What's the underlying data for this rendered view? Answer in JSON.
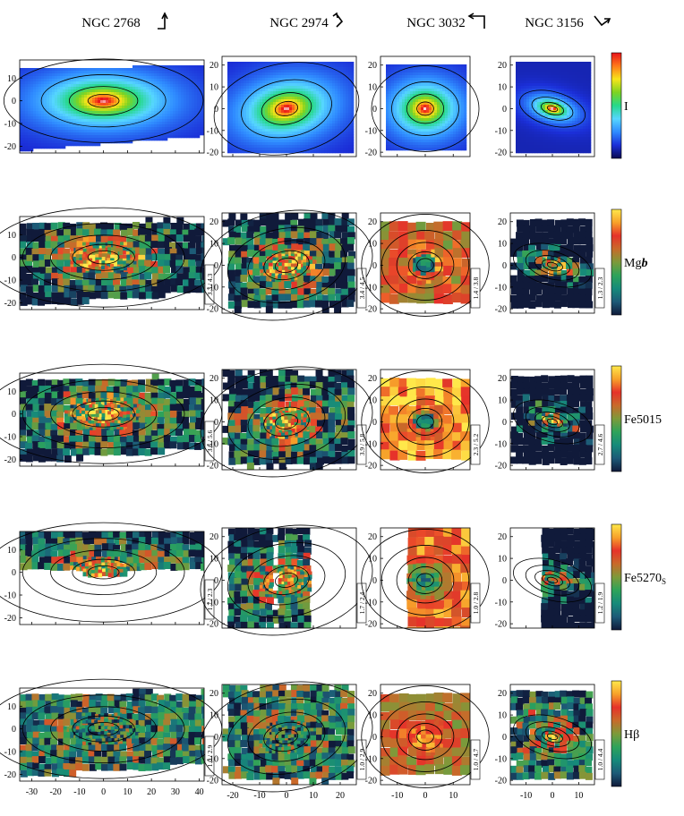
{
  "chart_data": {
    "type": "heatmap",
    "description_free": true,
    "galaxies": [
      {
        "name": "NGC 2768",
        "arrow": "north-up-east-right",
        "xticks": [
          -30,
          -20,
          -10,
          0,
          10,
          20,
          30,
          40
        ],
        "xlim": [
          -35,
          42
        ],
        "yticks": [
          10,
          0,
          -10,
          -20
        ],
        "ylim": [
          -23,
          18
        ],
        "pa_deg": 0,
        "q": 0.42
      },
      {
        "name": "NGC 2974",
        "arrow": "north-upleft-east-downright",
        "xticks": [
          -20,
          -10,
          0,
          10,
          20
        ],
        "xlim": [
          -24,
          26
        ],
        "yticks": [
          20,
          10,
          0,
          -10,
          -20
        ],
        "ylim": [
          -22,
          24
        ],
        "pa_deg": -10,
        "q": 0.62
      },
      {
        "name": "NGC 3032",
        "arrow": "north-up-east-left",
        "xticks": [
          -10,
          0,
          10
        ],
        "xlim": [
          -16,
          16
        ],
        "yticks": [
          20,
          10,
          0,
          -10,
          -20
        ],
        "ylim": [
          -22,
          24
        ],
        "pa_deg": 0,
        "q": 0.8
      },
      {
        "name": "NGC 3156",
        "arrow": "north-upleft-east-downright",
        "xticks": [
          -10,
          0,
          10
        ],
        "xlim": [
          -16,
          16
        ],
        "yticks": [
          20,
          10,
          0,
          -10,
          -20
        ],
        "ylim": [
          -22,
          24
        ],
        "pa_deg": 15,
        "q": 0.5
      }
    ],
    "quantities": [
      {
        "label": "I",
        "cmap": "rainbow",
        "ranges": [
          "",
          "",
          "",
          ""
        ]
      },
      {
        "label": "Mgb",
        "label_main": "Mg",
        "label_italic": "b",
        "cmap": "index",
        "ranges": [
          "3.3 / 4.3",
          "3.4 / 4.5",
          "1.4 / 3.8",
          "1.3 / 2.3"
        ]
      },
      {
        "label": "Fe5015",
        "cmap": "index",
        "ranges": [
          "3.6 / 5.6",
          "3.9 / 5.8",
          "2.3 / 5.2",
          "2.7 / 4.6"
        ]
      },
      {
        "label": "Fe5270S",
        "label_main": "Fe5270",
        "label_sub": "S",
        "cmap": "index",
        "ranges": [
          "1.7 / 2.3",
          "1.7 / 2.4",
          "1.0 / 2.8",
          "1.2 / 1.9"
        ]
      },
      {
        "label": "Hβ",
        "cmap": "index",
        "ranges": [
          "1.0 / 2.9",
          "1.0 / 2.9",
          "1.0 / 4.7",
          "1.0 / 4.4"
        ]
      }
    ],
    "grid": false,
    "legend": "right colorbars"
  },
  "colors": {
    "rainbow": [
      "#0a0a50",
      "#1b2fd8",
      "#2f8bff",
      "#56d6ff",
      "#26d98a",
      "#7ed321",
      "#f7e51a",
      "#ff7a1a",
      "#e8131a",
      "#ffffff"
    ],
    "index": [
      "#101a3a",
      "#1d5a77",
      "#168a7a",
      "#2ea35a",
      "#7d9a3a",
      "#c86a2a",
      "#e6322a",
      "#f7a12a",
      "#ffe84a"
    ],
    "contour": "#000000"
  }
}
